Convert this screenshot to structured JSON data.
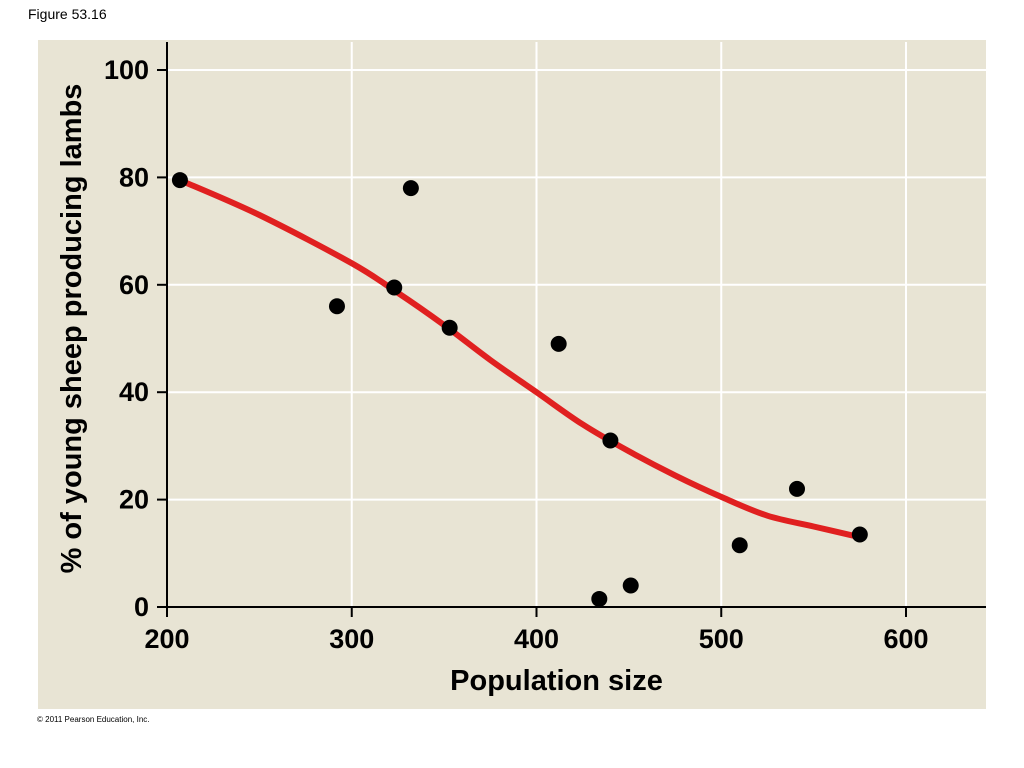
{
  "figure_label": "Figure 53.16",
  "copyright": "© 2011 Pearson Education, Inc.",
  "chart_data": {
    "type": "scatter",
    "title": "",
    "xlabel": "Population size",
    "ylabel": "% of young sheep producing lambs",
    "xlim": [
      200,
      645
    ],
    "ylim": [
      0,
      100
    ],
    "xticks": [
      200,
      300,
      400,
      500,
      600
    ],
    "yticks": [
      0,
      20,
      40,
      60,
      80,
      100
    ],
    "grid": true,
    "colors": {
      "background": "#e8e4d4",
      "grid": "#ffffff",
      "points": "#000000",
      "fit_line": "#e02020"
    },
    "points": [
      {
        "x": 207,
        "y": 79.5
      },
      {
        "x": 292,
        "y": 56
      },
      {
        "x": 323,
        "y": 59.5
      },
      {
        "x": 332,
        "y": 78
      },
      {
        "x": 353,
        "y": 52
      },
      {
        "x": 412,
        "y": 49
      },
      {
        "x": 434,
        "y": 1.5
      },
      {
        "x": 440,
        "y": 31
      },
      {
        "x": 451,
        "y": 4
      },
      {
        "x": 510,
        "y": 11.5
      },
      {
        "x": 541,
        "y": 22
      },
      {
        "x": 575,
        "y": 13.5
      }
    ],
    "fit_line": {
      "x": [
        207,
        250,
        300,
        325,
        350,
        375,
        400,
        425,
        450,
        475,
        500,
        525,
        550,
        575
      ],
      "y": [
        79.5,
        73,
        64,
        58.5,
        52.5,
        46,
        40,
        34,
        29,
        24.5,
        20.5,
        17,
        15,
        13
      ]
    }
  }
}
